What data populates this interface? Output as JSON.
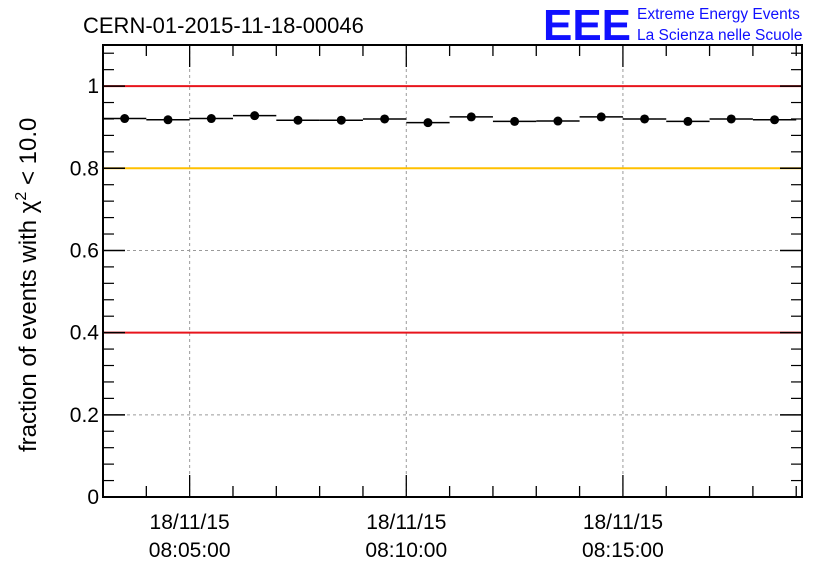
{
  "header": {
    "title": "CERN-01-2015-11-18-00046",
    "logo_text": "EEE",
    "logo_line1": "Extreme Energy Events",
    "logo_line2": "La Scienza nelle Scuole"
  },
  "chart_data": {
    "type": "scatter",
    "title": "CERN-01-2015-11-18-00046",
    "xlabel": "",
    "ylabel": "fraction of events with χ² < 10.0",
    "ylabel_parts": {
      "prefix": "fraction of events with χ",
      "superscript": "2",
      "suffix": " < 10.0"
    },
    "ylim": [
      0,
      1.1
    ],
    "xlim_seconds_after_08_03_00": [
      0,
      968
    ],
    "y_ticks": [
      "0",
      "0.2",
      "0.4",
      "0.6",
      "0.8",
      "1"
    ],
    "y_tick_values": [
      0,
      0.2,
      0.4,
      0.6,
      0.8,
      1.0
    ],
    "x_ticks": [
      {
        "date": "18/11/15",
        "time": "08:05:00",
        "seconds": 120
      },
      {
        "date": "18/11/15",
        "time": "08:10:00",
        "seconds": 420
      },
      {
        "date": "18/11/15",
        "time": "08:15:00",
        "seconds": 720
      }
    ],
    "grid": true,
    "reference_lines": [
      {
        "y": 1.0,
        "color": "#e8141c"
      },
      {
        "y": 0.8,
        "color": "#ffc000"
      },
      {
        "y": 0.4,
        "color": "#e8141c"
      }
    ],
    "bin_width_seconds": 60,
    "x_seconds": [
      30,
      90,
      150,
      210,
      270,
      330,
      390,
      450,
      510,
      570,
      630,
      690,
      750,
      810,
      870,
      930
    ],
    "x_time": [
      "08:03:30",
      "08:04:30",
      "08:05:30",
      "08:06:30",
      "08:07:30",
      "08:08:30",
      "08:09:30",
      "08:10:30",
      "08:11:30",
      "08:12:30",
      "08:13:30",
      "08:14:30",
      "08:15:30",
      "08:16:30",
      "08:17:30",
      "08:18:30"
    ],
    "values": [
      0.921,
      0.918,
      0.921,
      0.928,
      0.917,
      0.917,
      0.92,
      0.911,
      0.925,
      0.914,
      0.915,
      0.925,
      0.92,
      0.914,
      0.92,
      0.918
    ],
    "colors": {
      "points": "#000000",
      "grid": "#9a9a9a",
      "axis": "#000000"
    }
  }
}
